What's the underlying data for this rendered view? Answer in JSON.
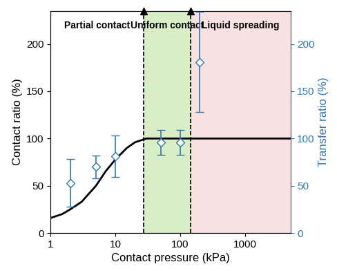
{
  "chart_data": {
    "type": "line",
    "xlabel": "Contact pressure (kPa)",
    "ylabel": "Contact ratio (%)",
    "y2label": "Transfer ratio (%)",
    "log": "x",
    "xlim": [
      1,
      5000
    ],
    "xticks": [
      1,
      10,
      100,
      1000
    ],
    "ylim": [
      0,
      235
    ],
    "yticks": [
      0,
      50,
      100,
      150,
      200
    ],
    "y2lim": [
      0,
      235
    ],
    "y2ticks": [
      0,
      50,
      100,
      150,
      200
    ],
    "series": [
      {
        "type": "line",
        "color": "#000000",
        "line_style": "solid",
        "x": [
          1,
          1.5,
          2,
          3,
          5,
          7,
          10,
          15,
          20,
          30,
          50,
          100,
          1000,
          5000
        ],
        "values": [
          16,
          20,
          25,
          33,
          50,
          65,
          78,
          90,
          96,
          100,
          100,
          100,
          100,
          100
        ]
      },
      {
        "type": "scatter",
        "axis": "y2",
        "color": "#2e75b6",
        "marker": "diamond",
        "x": [
          2,
          5,
          10,
          50,
          100,
          200
        ],
        "values": [
          53,
          70,
          81,
          96,
          96,
          181
        ],
        "errors": [
          25,
          12,
          22,
          13,
          13,
          53
        ]
      }
    ],
    "regions": [
      {
        "label": "Partial contact",
        "x_range": [
          1,
          27
        ]
      },
      {
        "label": "Uniform contact",
        "x_range": [
          27,
          143
        ],
        "color": "#d8efc6"
      },
      {
        "label": "Liquid spreading",
        "x_range": [
          143,
          5000
        ],
        "color": "#f7e1e1"
      }
    ],
    "vlines": {
      "x": [
        27,
        143
      ],
      "line_style": "dashed",
      "color": "#000000"
    }
  }
}
